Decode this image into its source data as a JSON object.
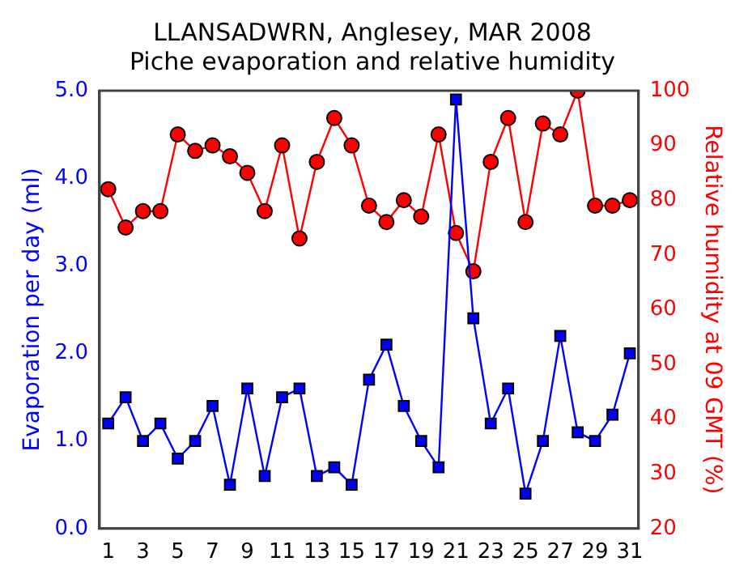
{
  "chart_data": {
    "type": "line",
    "title": "LLANSADWRN, Anglesey, MAR 2008",
    "subtitle": "Piche evaporation and relative humidity",
    "ylabel": "Evaporation per day (ml)",
    "y2label": "Relative humidity at 09 GMT (%)",
    "x": [
      1,
      2,
      3,
      4,
      5,
      6,
      7,
      8,
      9,
      10,
      11,
      12,
      13,
      14,
      15,
      16,
      17,
      18,
      19,
      20,
      21,
      22,
      23,
      24,
      25,
      26,
      27,
      28,
      29,
      30,
      31
    ],
    "xlim": [
      0.5,
      31.5
    ],
    "xticks": [
      1,
      3,
      5,
      7,
      9,
      11,
      13,
      15,
      17,
      19,
      21,
      23,
      25,
      27,
      29,
      31
    ],
    "ylim": [
      0,
      5
    ],
    "yticks": [
      {
        "value": 0,
        "label": "0.0"
      },
      {
        "value": 1,
        "label": "1.0"
      },
      {
        "value": 2,
        "label": "2.0"
      },
      {
        "value": 3,
        "label": "3.0"
      },
      {
        "value": 4,
        "label": "4.0"
      },
      {
        "value": 5,
        "label": "5.0"
      }
    ],
    "y2lim": [
      20,
      100
    ],
    "y2ticks": [
      20,
      30,
      40,
      50,
      60,
      70,
      80,
      90,
      100
    ],
    "grid": false,
    "legend": false,
    "series": [
      {
        "color": "#0000ff",
        "marker": "square",
        "values": [
          1.2,
          1.5,
          1.0,
          1.2,
          0.8,
          1.0,
          1.4,
          0.5,
          1.6,
          0.6,
          1.5,
          1.6,
          0.6,
          0.7,
          0.5,
          1.7,
          2.1,
          1.4,
          1.0,
          0.7,
          4.9,
          2.4,
          1.2,
          1.6,
          0.4,
          1.0,
          2.2,
          1.1,
          1.0,
          1.3,
          2.0
        ]
      },
      {
        "color": "#ff0000",
        "marker": "circle",
        "axis": "y2",
        "values": [
          82,
          75,
          78,
          78,
          92,
          89,
          90,
          88,
          85,
          78,
          90,
          73,
          87,
          95,
          90,
          79,
          76,
          80,
          77,
          92,
          74,
          67,
          87,
          95,
          76,
          94,
          92,
          100,
          79,
          79,
          80
        ]
      }
    ]
  }
}
